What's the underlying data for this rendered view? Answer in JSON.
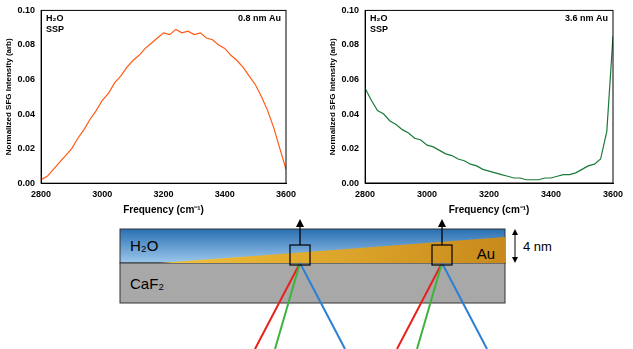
{
  "chart_data": [
    {
      "type": "line",
      "annotations": [
        "H₂O",
        "SSP",
        "0.8 nm Au"
      ],
      "x_label": "Frequency (cm⁻¹)",
      "y_label": "Normalized SFG Intensity (arb)",
      "x": [
        2800,
        2820,
        2840,
        2860,
        2880,
        2900,
        2920,
        2940,
        2960,
        2980,
        3000,
        3020,
        3040,
        3060,
        3080,
        3100,
        3120,
        3140,
        3160,
        3180,
        3200,
        3220,
        3240,
        3260,
        3280,
        3300,
        3320,
        3340,
        3360,
        3380,
        3400,
        3420,
        3440,
        3460,
        3480,
        3500,
        3520,
        3540,
        3560,
        3580,
        3600
      ],
      "values": [
        0.002,
        0.004,
        0.008,
        0.012,
        0.016,
        0.02,
        0.026,
        0.031,
        0.037,
        0.042,
        0.048,
        0.052,
        0.058,
        0.062,
        0.067,
        0.071,
        0.074,
        0.078,
        0.081,
        0.084,
        0.087,
        0.086,
        0.089,
        0.087,
        0.088,
        0.086,
        0.087,
        0.084,
        0.083,
        0.08,
        0.078,
        0.074,
        0.071,
        0.067,
        0.062,
        0.057,
        0.05,
        0.042,
        0.032,
        0.02,
        0.008
      ],
      "color": "#ff5a14",
      "xlim": [
        2800,
        3600
      ],
      "xticks": [
        2800,
        3000,
        3200,
        3400,
        3600
      ],
      "ylim": [
        0,
        0.1
      ],
      "yticks": [
        {
          "value": 0,
          "label": "0.00"
        },
        {
          "value": 0.02,
          "label": "0.02"
        },
        {
          "value": 0.04,
          "label": "0.04"
        },
        {
          "value": 0.06,
          "label": "0.06"
        },
        {
          "value": 0.08,
          "label": "0.08"
        },
        {
          "value": 0.1,
          "label": "0.10"
        }
      ],
      "grid": false
    },
    {
      "type": "line",
      "annotations": [
        "H₂O",
        "SSP",
        "3.6 nm Au"
      ],
      "x_label": "Frequency (cm⁻¹)",
      "y_label": "Normalized SFG Intensity (arb)",
      "x": [
        2800,
        2820,
        2840,
        2860,
        2880,
        2900,
        2920,
        2940,
        2960,
        2980,
        3000,
        3020,
        3040,
        3060,
        3080,
        3100,
        3120,
        3140,
        3160,
        3180,
        3200,
        3220,
        3240,
        3260,
        3280,
        3300,
        3320,
        3340,
        3360,
        3380,
        3400,
        3420,
        3440,
        3460,
        3480,
        3500,
        3520,
        3540,
        3560,
        3580,
        3600
      ],
      "values": [
        0.055,
        0.048,
        0.042,
        0.04,
        0.036,
        0.034,
        0.031,
        0.029,
        0.026,
        0.025,
        0.022,
        0.021,
        0.019,
        0.017,
        0.016,
        0.014,
        0.013,
        0.011,
        0.01,
        0.008,
        0.007,
        0.006,
        0.005,
        0.004,
        0.003,
        0.003,
        0.002,
        0.002,
        0.002,
        0.003,
        0.003,
        0.004,
        0.005,
        0.005,
        0.006,
        0.008,
        0.01,
        0.011,
        0.014,
        0.03,
        0.085
      ],
      "color": "#1a7a3a",
      "reference_lines": [
        0
      ],
      "xlim": [
        2800,
        3600
      ],
      "xticks": [
        2800,
        3000,
        3200,
        3400,
        3600
      ],
      "ylim": [
        0,
        0.1
      ],
      "yticks": [
        {
          "value": 0,
          "label": "0.00"
        },
        {
          "value": 0.02,
          "label": "0.02"
        },
        {
          "value": 0.04,
          "label": "0.04"
        },
        {
          "value": 0.06,
          "label": "0.06"
        },
        {
          "value": 0.08,
          "label": "0.08"
        },
        {
          "value": 0.1,
          "label": "0.10"
        }
      ],
      "grid": false
    }
  ],
  "diagram": {
    "water": "H₂O",
    "gold": "Au",
    "substrate": "CaF₂",
    "thickness": "4 nm"
  }
}
